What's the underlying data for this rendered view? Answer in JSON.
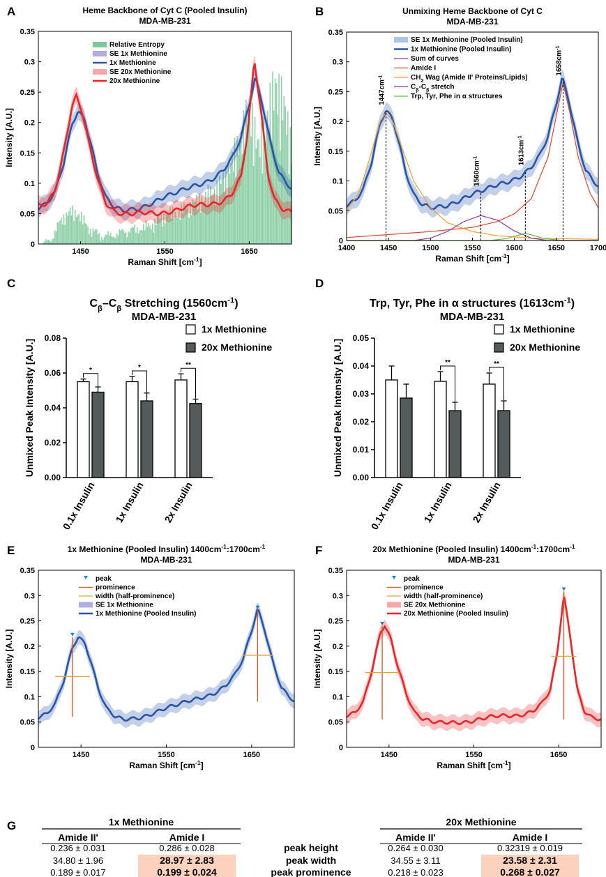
{
  "figure": {
    "panel_letters": [
      "A",
      "B",
      "C",
      "D",
      "E",
      "F",
      "G"
    ]
  },
  "chart_data": [
    {
      "id": "A",
      "type": "line",
      "title": "Heme Backbone of Cyt C (Pooled Insulin)",
      "subtitle": "MDA-MB-231",
      "xlabel": "Raman Shift [cm-1]",
      "ylabel": "Intensity [A.U.]",
      "xlim": [
        1400,
        1700
      ],
      "ylim": [
        0,
        0.35
      ],
      "xticks": [
        1450,
        1550,
        1650
      ],
      "yticks": [
        0,
        0.05,
        0.1,
        0.15,
        0.2,
        0.25,
        0.3,
        0.35
      ],
      "legend_position": "top-left",
      "legend": [
        "Relative Entropy",
        "SE 1x Methionine",
        "1x Methionine",
        "SE 20x Methionine",
        "20x Methionine"
      ],
      "series": [
        {
          "name": "1x Methionine",
          "color": "#2855a8",
          "x": [
            1400,
            1410,
            1420,
            1430,
            1440,
            1447,
            1455,
            1462,
            1470,
            1480,
            1490,
            1500,
            1510,
            1520,
            1530,
            1540,
            1550,
            1560,
            1570,
            1580,
            1590,
            1600,
            1610,
            1620,
            1630,
            1640,
            1650,
            1657,
            1665,
            1675,
            1685,
            1700
          ],
          "y": [
            0.062,
            0.068,
            0.085,
            0.13,
            0.195,
            0.218,
            0.205,
            0.17,
            0.12,
            0.078,
            0.06,
            0.052,
            0.054,
            0.058,
            0.066,
            0.074,
            0.08,
            0.082,
            0.086,
            0.091,
            0.097,
            0.104,
            0.113,
            0.125,
            0.142,
            0.172,
            0.228,
            0.272,
            0.235,
            0.17,
            0.12,
            0.09
          ]
        },
        {
          "name": "20x Methionine",
          "color": "#e8262a",
          "x": [
            1400,
            1410,
            1420,
            1430,
            1440,
            1445,
            1452,
            1460,
            1470,
            1480,
            1490,
            1500,
            1510,
            1520,
            1530,
            1540,
            1550,
            1560,
            1570,
            1580,
            1590,
            1600,
            1610,
            1620,
            1630,
            1640,
            1648,
            1656,
            1664,
            1672,
            1680,
            1690,
            1700
          ],
          "y": [
            0.065,
            0.07,
            0.09,
            0.15,
            0.225,
            0.24,
            0.215,
            0.165,
            0.11,
            0.07,
            0.055,
            0.048,
            0.047,
            0.049,
            0.051,
            0.052,
            0.054,
            0.056,
            0.058,
            0.06,
            0.062,
            0.064,
            0.068,
            0.074,
            0.086,
            0.11,
            0.18,
            0.3,
            0.215,
            0.115,
            0.075,
            0.06,
            0.055
          ]
        },
        {
          "name": "Relative Entropy",
          "color": "#7ec99a",
          "x": [
            1400,
            1415,
            1430,
            1445,
            1460,
            1475,
            1490,
            1505,
            1520,
            1535,
            1550,
            1565,
            1580,
            1595,
            1610,
            1620,
            1630,
            1640,
            1650,
            1660,
            1670,
            1680,
            1690,
            1700
          ],
          "y": [
            0.0,
            0.01,
            0.05,
            0.06,
            0.035,
            0.02,
            0.015,
            0.02,
            0.03,
            0.045,
            0.06,
            0.055,
            0.07,
            0.09,
            0.11,
            0.13,
            0.16,
            0.2,
            0.26,
            0.18,
            0.24,
            0.31,
            0.27,
            0.18
          ]
        }
      ]
    },
    {
      "id": "B",
      "type": "line",
      "title": "Unmixing Heme Backbone of Cyt C",
      "subtitle": "MDA-MB-231",
      "xlabel": "Raman Shift [cm-1]",
      "ylabel": "Intensity [A.U.]",
      "xlim": [
        1400,
        1700
      ],
      "ylim": [
        0,
        0.35
      ],
      "xticks": [
        1400,
        1450,
        1500,
        1550,
        1600,
        1650,
        1700
      ],
      "yticks": [
        0,
        0.05,
        0.1,
        0.15,
        0.2,
        0.25,
        0.3,
        0.35
      ],
      "legend_position": "top-left",
      "legend": [
        "SE 1x Methionine (Pooled Insulin)",
        "1x Methionine (Pooled Insulin)",
        "Sum of curves",
        "Amide I",
        "CH2 Wag (Amide II' Proteins/Lipids)",
        "Cβ-Cβ stretch",
        "Trp, Tyr, Phe in α structures"
      ],
      "peak_annotations": [
        {
          "x": 1447,
          "label": "1447cm-1"
        },
        {
          "x": 1560,
          "label": "1560cm-1"
        },
        {
          "x": 1613,
          "label": "1613cm-1"
        },
        {
          "x": 1658,
          "label": "1658cm-1"
        }
      ],
      "series": [
        {
          "name": "1x Methionine (Pooled Insulin)",
          "color": "#2855a8",
          "x": [
            1400,
            1410,
            1420,
            1430,
            1440,
            1447,
            1455,
            1462,
            1470,
            1480,
            1490,
            1500,
            1510,
            1520,
            1530,
            1540,
            1550,
            1560,
            1570,
            1580,
            1590,
            1600,
            1610,
            1620,
            1630,
            1640,
            1650,
            1657,
            1665,
            1675,
            1685,
            1700
          ],
          "y": [
            0.062,
            0.068,
            0.085,
            0.13,
            0.195,
            0.218,
            0.205,
            0.17,
            0.12,
            0.078,
            0.06,
            0.052,
            0.054,
            0.058,
            0.066,
            0.074,
            0.08,
            0.082,
            0.086,
            0.091,
            0.097,
            0.104,
            0.113,
            0.125,
            0.142,
            0.172,
            0.228,
            0.272,
            0.235,
            0.17,
            0.12,
            0.09
          ]
        },
        {
          "name": "Amide I",
          "color": "#e0452a",
          "x": [
            1400,
            1450,
            1500,
            1550,
            1580,
            1600,
            1620,
            1640,
            1650,
            1658,
            1666,
            1676,
            1690,
            1700
          ],
          "y": [
            0.005,
            0.01,
            0.015,
            0.022,
            0.032,
            0.045,
            0.07,
            0.14,
            0.21,
            0.265,
            0.215,
            0.14,
            0.08,
            0.055
          ]
        },
        {
          "name": "CH2 Wag (Amide II' Proteins/Lipids)",
          "color": "#f0a030",
          "x": [
            1400,
            1415,
            1430,
            1440,
            1447,
            1455,
            1465,
            1480,
            1500,
            1520,
            1550,
            1580,
            1620,
            1700
          ],
          "y": [
            0.05,
            0.08,
            0.15,
            0.2,
            0.215,
            0.2,
            0.16,
            0.1,
            0.055,
            0.03,
            0.015,
            0.008,
            0.004,
            0.002
          ]
        },
        {
          "name": "Cβ-Cβ stretch",
          "color": "#8a3aa0",
          "x": [
            1480,
            1500,
            1520,
            1540,
            1560,
            1580,
            1600,
            1620,
            1640
          ],
          "y": [
            0.0,
            0.004,
            0.015,
            0.032,
            0.042,
            0.034,
            0.016,
            0.004,
            0.0
          ]
        },
        {
          "name": "Trp, Tyr, Phe in α structures",
          "color": "#6ab840",
          "x": [
            1570,
            1590,
            1605,
            1613,
            1622,
            1635,
            1660,
            1700
          ],
          "y": [
            0.0,
            0.003,
            0.009,
            0.012,
            0.009,
            0.003,
            0.0,
            0.0
          ]
        }
      ]
    },
    {
      "id": "C",
      "type": "bar",
      "title": "Cβ–Cβ Stretching (1560cm-1)",
      "subtitle": "MDA-MB-231",
      "ylabel": "Unmixed Peak Intensity [A.U.]",
      "ylim": [
        0,
        0.08
      ],
      "yticks": [
        "0.00",
        "0.02",
        "0.04",
        "0.06",
        "0.08"
      ],
      "categories": [
        "0.1x Insulin",
        "1x Insulin",
        "2x Insulin"
      ],
      "legend_position": "top-right",
      "series": [
        {
          "name": "1x Methionine",
          "color": "#ffffff",
          "values": [
            0.055,
            0.055,
            0.056
          ],
          "errors": [
            0.0015,
            0.003,
            0.0035
          ]
        },
        {
          "name": "20x Methionine",
          "color": "#555a5a",
          "values": [
            0.049,
            0.044,
            0.0425
          ],
          "errors": [
            0.003,
            0.0045,
            0.0025
          ]
        }
      ],
      "significance": [
        "*",
        "*",
        "**"
      ]
    },
    {
      "id": "D",
      "type": "bar",
      "title": "Trp, Tyr, Phe in α structures (1613cm-1)",
      "subtitle": "MDA-MB-231",
      "ylabel": "Unmixed Peak Intensity [A.U.]",
      "ylim": [
        0,
        0.05
      ],
      "yticks": [
        "0.00",
        "0.01",
        "0.02",
        "0.03",
        "0.04",
        "0.05"
      ],
      "categories": [
        "0.1x Insulin",
        "1x Insulin",
        "2x Insulin"
      ],
      "legend_position": "top-right",
      "series": [
        {
          "name": "1x Methionine",
          "color": "#ffffff",
          "values": [
            0.035,
            0.0345,
            0.0335
          ],
          "errors": [
            0.005,
            0.0035,
            0.004
          ]
        },
        {
          "name": "20x Methionine",
          "color": "#555a5a",
          "values": [
            0.0285,
            0.024,
            0.024
          ],
          "errors": [
            0.005,
            0.003,
            0.0035
          ]
        }
      ],
      "significance": [
        "",
        "**",
        "**"
      ]
    },
    {
      "id": "E",
      "type": "line",
      "title": "1x Methionine (Pooled Insulin) 1400cm-1:1700cm-1",
      "subtitle": "MDA-MB-231",
      "xlabel": "Raman Shift [cm-1]",
      "ylabel": "Intensity [A.U.]",
      "xlim": [
        1400,
        1700
      ],
      "ylim": [
        0,
        0.35
      ],
      "xticks": [
        1450,
        1550,
        1650
      ],
      "yticks": [
        0,
        0.05,
        0.1,
        0.15,
        0.2,
        0.25,
        0.3,
        0.35
      ],
      "legend_position": "top-left",
      "legend": [
        "peak",
        "prominence",
        "width (half-prominence)",
        "SE 1x Methionine",
        "1x Methionine (Pooled Insulin)"
      ],
      "peaks": [
        {
          "x": 1440,
          "height": 0.218,
          "base": 0.06,
          "half_width_y": 0.14,
          "width": 34.8
        },
        {
          "x": 1657,
          "height": 0.272,
          "base": 0.09,
          "half_width_y": 0.182,
          "width": 28.97
        }
      ],
      "series": [
        {
          "name": "1x Methionine (Pooled Insulin)",
          "color": "#2855a8",
          "x": [
            1400,
            1410,
            1420,
            1430,
            1440,
            1447,
            1455,
            1462,
            1470,
            1480,
            1490,
            1500,
            1510,
            1520,
            1530,
            1540,
            1550,
            1560,
            1570,
            1580,
            1590,
            1600,
            1610,
            1620,
            1630,
            1640,
            1650,
            1657,
            1665,
            1675,
            1685,
            1700
          ],
          "y": [
            0.062,
            0.068,
            0.085,
            0.13,
            0.195,
            0.218,
            0.205,
            0.17,
            0.12,
            0.078,
            0.06,
            0.052,
            0.054,
            0.058,
            0.066,
            0.074,
            0.08,
            0.082,
            0.086,
            0.091,
            0.097,
            0.104,
            0.113,
            0.125,
            0.142,
            0.172,
            0.228,
            0.272,
            0.235,
            0.17,
            0.12,
            0.09
          ]
        }
      ]
    },
    {
      "id": "F",
      "type": "line",
      "title": "20x Methionine (Pooled Insulin) 1400cm-1:1700cm-1",
      "subtitle": "MDA-MB-231",
      "xlabel": "Raman Shift [cm-1]",
      "ylabel": "Intensity [A.U.]",
      "xlim": [
        1400,
        1700
      ],
      "ylim": [
        0,
        0.35
      ],
      "xticks": [
        1450,
        1550,
        1650
      ],
      "yticks": [
        0,
        0.05,
        0.1,
        0.15,
        0.2,
        0.25,
        0.3,
        0.35
      ],
      "legend_position": "top-left",
      "legend": [
        "peak",
        "prominence",
        "width (half-prominence)",
        "SE 20x Methionine",
        "20x Methionine (Pooled Insulin)"
      ],
      "peaks": [
        {
          "x": 1442,
          "height": 0.24,
          "base": 0.055,
          "half_width_y": 0.148,
          "width": 34.55
        },
        {
          "x": 1656,
          "height": 0.308,
          "base": 0.055,
          "half_width_y": 0.18,
          "width": 23.58
        }
      ],
      "series": [
        {
          "name": "20x Methionine (Pooled Insulin)",
          "color": "#e8262a",
          "x": [
            1400,
            1410,
            1420,
            1430,
            1440,
            1445,
            1452,
            1460,
            1470,
            1480,
            1490,
            1500,
            1510,
            1520,
            1530,
            1540,
            1550,
            1560,
            1570,
            1580,
            1590,
            1600,
            1610,
            1620,
            1630,
            1640,
            1648,
            1656,
            1664,
            1672,
            1680,
            1690,
            1700
          ],
          "y": [
            0.065,
            0.07,
            0.09,
            0.15,
            0.225,
            0.24,
            0.215,
            0.165,
            0.11,
            0.07,
            0.055,
            0.048,
            0.047,
            0.049,
            0.051,
            0.052,
            0.054,
            0.056,
            0.058,
            0.06,
            0.062,
            0.064,
            0.068,
            0.074,
            0.086,
            0.11,
            0.18,
            0.3,
            0.215,
            0.115,
            0.075,
            0.06,
            0.055
          ]
        }
      ]
    },
    {
      "id": "G",
      "type": "table",
      "group_1x": "1x Methionine",
      "group_20x": "20x Methionine",
      "columns": [
        "Amide II'",
        "Amide I"
      ],
      "row_labels": [
        "peak height",
        "peak width",
        "peak prominence"
      ],
      "rows_1x": [
        [
          "0.236 ± 0.031",
          "0.286 ± 0.028"
        ],
        [
          "34.80 ± 1.96",
          "28.97 ± 2.83"
        ],
        [
          "0.189 ± 0.017",
          "0.199 ± 0.024"
        ]
      ],
      "rows_20x": [
        [
          "0.264 ± 0.030",
          "0.32319 ± 0.019"
        ],
        [
          "34.55 ± 3.11",
          "23.58 ± 2.31"
        ],
        [
          "0.218 ± 0.023",
          "0.268 ± 0.027"
        ]
      ],
      "highlight_color": "#fad2bd"
    }
  ]
}
